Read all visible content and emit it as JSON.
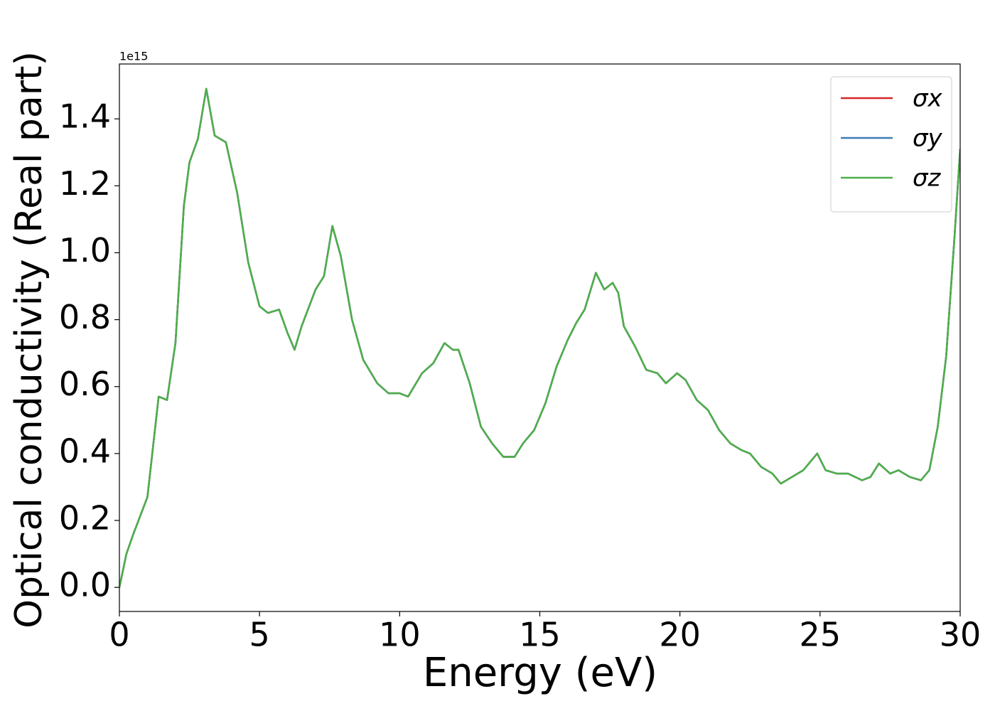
{
  "chart_data": {
    "type": "line",
    "xlabel": "Energy (eV)",
    "ylabel": "Optical conductivity (Real part)",
    "offset_label": "1e15",
    "x": [
      0,
      0.25,
      0.5,
      1.0,
      1.4,
      1.7,
      2.0,
      2.3,
      2.5,
      2.8,
      3.1,
      3.4,
      3.8,
      4.2,
      4.6,
      5.0,
      5.3,
      5.7,
      6.0,
      6.25,
      6.5,
      7.0,
      7.3,
      7.6,
      7.9,
      8.3,
      8.7,
      9.2,
      9.6,
      10.0,
      10.3,
      10.8,
      11.2,
      11.6,
      11.9,
      12.1,
      12.5,
      12.9,
      13.3,
      13.7,
      14.1,
      14.4,
      14.8,
      15.2,
      15.6,
      16.0,
      16.3,
      16.6,
      17.0,
      17.3,
      17.6,
      17.8,
      18.0,
      18.4,
      18.8,
      19.2,
      19.5,
      19.9,
      20.2,
      20.6,
      21.0,
      21.4,
      21.8,
      22.2,
      22.5,
      22.9,
      23.3,
      23.6,
      24.0,
      24.4,
      24.9,
      25.2,
      25.6,
      26.0,
      26.5,
      26.8,
      27.1,
      27.5,
      27.8,
      28.2,
      28.6,
      28.9,
      29.2,
      29.5,
      29.8,
      30.0
    ],
    "series": [
      {
        "name": "σx",
        "color": "#d62728",
        "values": [
          0,
          0.1,
          0.16,
          0.27,
          0.57,
          0.56,
          0.73,
          1.14,
          1.27,
          1.34,
          1.49,
          1.35,
          1.33,
          1.18,
          0.97,
          0.84,
          0.82,
          0.83,
          0.76,
          0.71,
          0.78,
          0.89,
          0.93,
          1.08,
          0.99,
          0.8,
          0.68,
          0.61,
          0.58,
          0.58,
          0.57,
          0.64,
          0.67,
          0.73,
          0.71,
          0.71,
          0.61,
          0.48,
          0.43,
          0.39,
          0.39,
          0.43,
          0.47,
          0.55,
          0.66,
          0.74,
          0.79,
          0.83,
          0.94,
          0.89,
          0.91,
          0.88,
          0.78,
          0.72,
          0.65,
          0.64,
          0.61,
          0.64,
          0.62,
          0.56,
          0.53,
          0.47,
          0.43,
          0.41,
          0.4,
          0.36,
          0.34,
          0.31,
          0.33,
          0.35,
          0.4,
          0.35,
          0.34,
          0.34,
          0.32,
          0.33,
          0.37,
          0.34,
          0.35,
          0.33,
          0.32,
          0.35,
          0.48,
          0.69,
          1.05,
          1.31
        ]
      },
      {
        "name": "σy",
        "color": "#3a7db5",
        "values": [
          0,
          0.1,
          0.16,
          0.27,
          0.57,
          0.56,
          0.73,
          1.14,
          1.27,
          1.34,
          1.49,
          1.35,
          1.33,
          1.18,
          0.97,
          0.84,
          0.82,
          0.83,
          0.76,
          0.71,
          0.78,
          0.89,
          0.93,
          1.08,
          0.99,
          0.8,
          0.68,
          0.61,
          0.58,
          0.58,
          0.57,
          0.64,
          0.67,
          0.73,
          0.71,
          0.71,
          0.61,
          0.48,
          0.43,
          0.39,
          0.39,
          0.43,
          0.47,
          0.55,
          0.66,
          0.74,
          0.79,
          0.83,
          0.94,
          0.89,
          0.91,
          0.88,
          0.78,
          0.72,
          0.65,
          0.64,
          0.61,
          0.64,
          0.62,
          0.56,
          0.53,
          0.47,
          0.43,
          0.41,
          0.4,
          0.36,
          0.34,
          0.31,
          0.33,
          0.35,
          0.4,
          0.35,
          0.34,
          0.34,
          0.32,
          0.33,
          0.37,
          0.34,
          0.35,
          0.33,
          0.32,
          0.35,
          0.48,
          0.69,
          1.05,
          1.31
        ]
      },
      {
        "name": "σz",
        "color": "#4daf4a",
        "values": [
          0,
          0.1,
          0.16,
          0.27,
          0.57,
          0.56,
          0.73,
          1.14,
          1.27,
          1.34,
          1.49,
          1.35,
          1.33,
          1.18,
          0.97,
          0.84,
          0.82,
          0.83,
          0.76,
          0.71,
          0.78,
          0.89,
          0.93,
          1.08,
          0.99,
          0.8,
          0.68,
          0.61,
          0.58,
          0.58,
          0.57,
          0.64,
          0.67,
          0.73,
          0.71,
          0.71,
          0.61,
          0.48,
          0.43,
          0.39,
          0.39,
          0.43,
          0.47,
          0.55,
          0.66,
          0.74,
          0.79,
          0.83,
          0.94,
          0.89,
          0.91,
          0.88,
          0.78,
          0.72,
          0.65,
          0.64,
          0.61,
          0.64,
          0.62,
          0.56,
          0.53,
          0.47,
          0.43,
          0.41,
          0.4,
          0.36,
          0.34,
          0.31,
          0.33,
          0.35,
          0.4,
          0.35,
          0.34,
          0.34,
          0.32,
          0.33,
          0.37,
          0.34,
          0.35,
          0.33,
          0.32,
          0.35,
          0.48,
          0.69,
          1.05,
          1.31
        ]
      }
    ],
    "xlim": [
      0,
      30
    ],
    "xticks": [
      0,
      5,
      10,
      15,
      20,
      25,
      30
    ],
    "ylim": [
      -0.072,
      1.564
    ],
    "yticks": [
      {
        "value": 0,
        "label": "0.0"
      },
      0.2,
      0.4,
      0.6,
      0.8,
      {
        "value": 1,
        "label": "1.0"
      },
      1.2,
      1.4
    ],
    "grid": false,
    "legend": "upper right"
  }
}
